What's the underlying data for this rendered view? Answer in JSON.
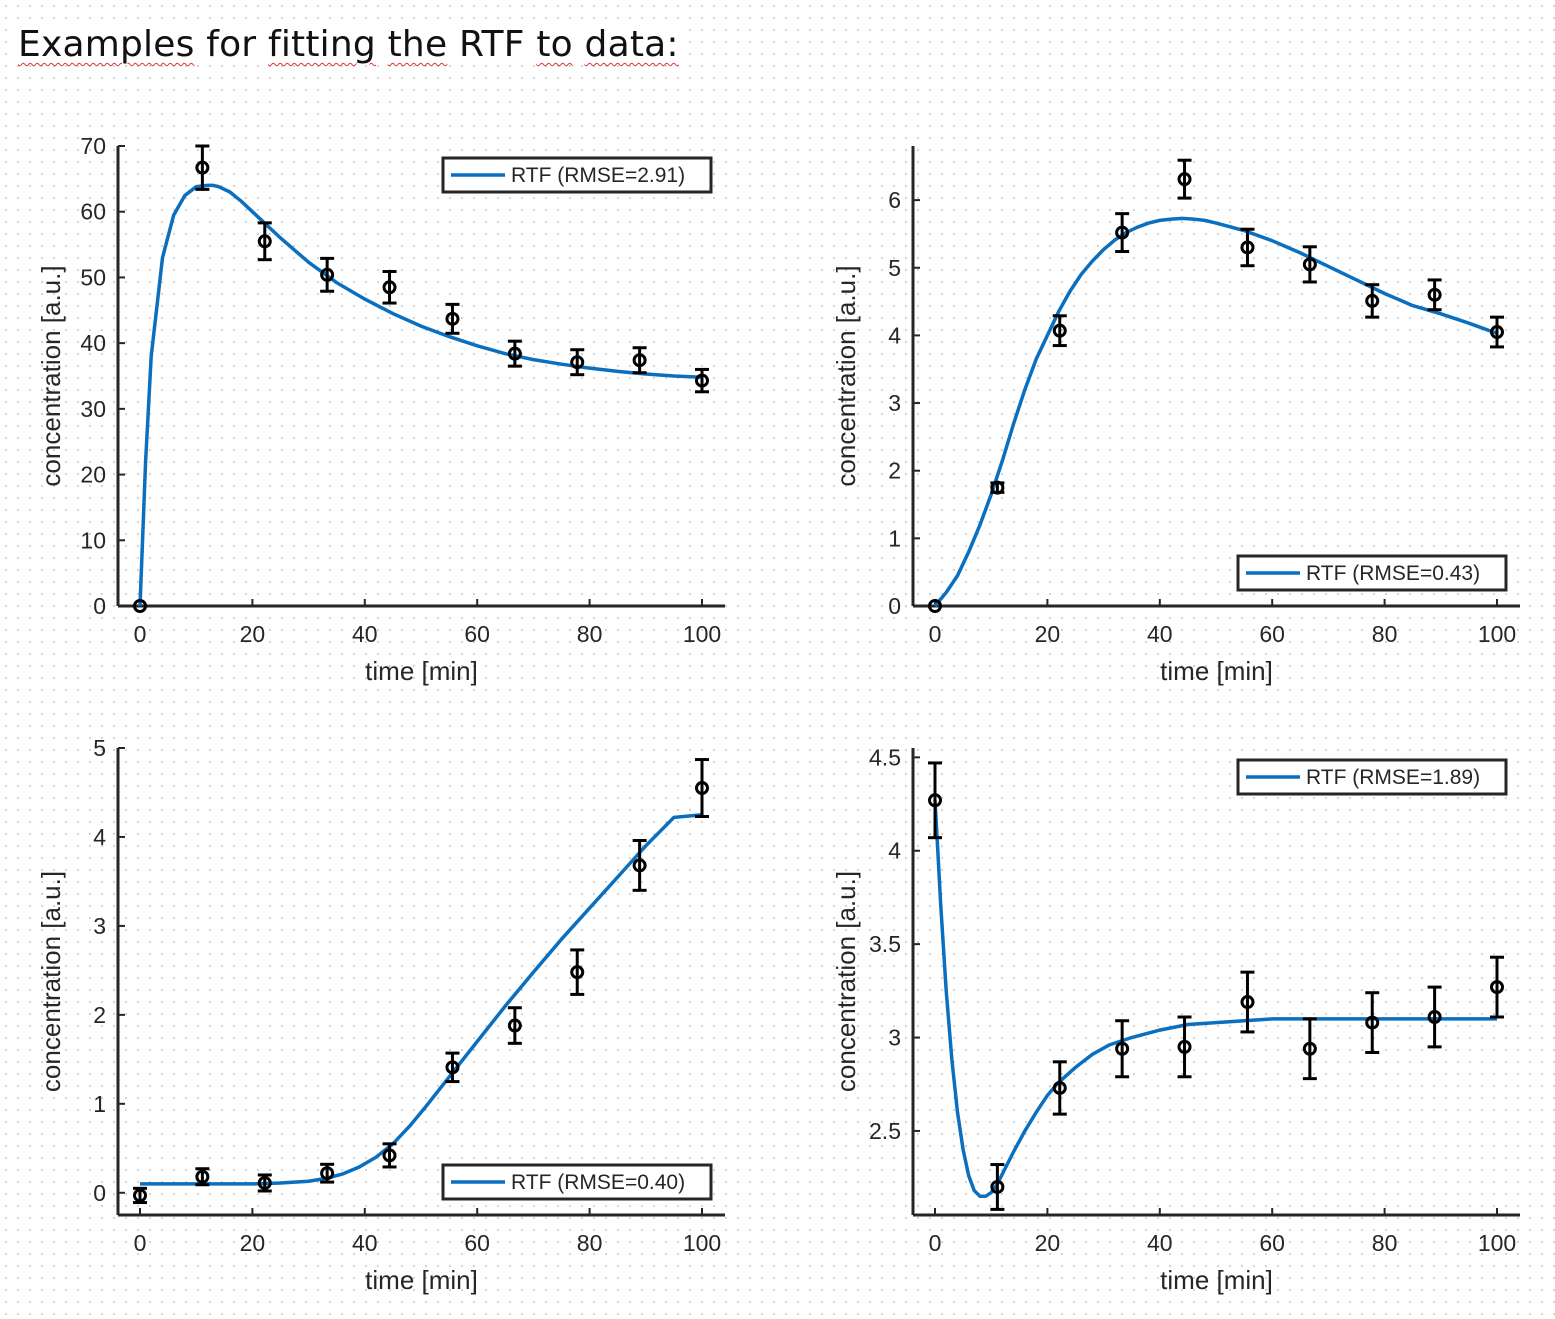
{
  "page": {
    "title_words": [
      "Examples",
      "for",
      "fitting",
      "the",
      "RTF",
      "to",
      "data:"
    ],
    "squiggled_words": [
      0,
      2,
      3,
      5,
      6
    ]
  },
  "chart_data": [
    {
      "type": "line",
      "title": "",
      "xlabel": "time  [min]",
      "ylabel": "concentration  [a.u.]",
      "xlim": [
        0,
        100
      ],
      "ylim": [
        0,
        70
      ],
      "xticks": [
        0,
        20,
        40,
        60,
        80,
        100
      ],
      "yticks": [
        0,
        10,
        20,
        30,
        40,
        50,
        60,
        70
      ],
      "legend": {
        "label": "RTF (RMSE=2.91)",
        "location": "top-right"
      },
      "observed": {
        "x": [
          0,
          11.1,
          22.2,
          33.3,
          44.4,
          55.6,
          66.7,
          77.8,
          88.9,
          100
        ],
        "y": [
          0,
          66.7,
          55.5,
          50.4,
          48.5,
          43.7,
          38.4,
          37.1,
          37.4,
          34.3
        ],
        "err": [
          0,
          3.3,
          2.8,
          2.5,
          2.4,
          2.2,
          1.9,
          1.9,
          1.9,
          1.7
        ]
      },
      "fit": {
        "name": "RTF",
        "x": [
          0,
          1,
          2,
          4,
          6,
          8,
          10,
          12,
          13,
          14,
          16,
          18,
          20,
          25,
          30,
          35,
          40,
          45,
          50,
          55,
          60,
          65,
          70,
          75,
          80,
          85,
          90,
          95,
          100
        ],
        "y": [
          0,
          22,
          38,
          53,
          59.5,
          62.5,
          63.8,
          64,
          64,
          63.8,
          63,
          61.6,
          60,
          56,
          52.3,
          49.2,
          46.7,
          44.5,
          42.6,
          41,
          39.6,
          38.4,
          37.5,
          36.8,
          36.2,
          35.7,
          35.3,
          35,
          34.8
        ]
      }
    },
    {
      "type": "line",
      "title": "",
      "xlabel": "time  [min]",
      "ylabel": "concentration  [a.u.]",
      "xlim": [
        0,
        100
      ],
      "ylim": [
        0,
        6.8
      ],
      "xticks": [
        0,
        20,
        40,
        60,
        80,
        100
      ],
      "yticks": [
        0,
        1,
        2,
        3,
        4,
        5,
        6
      ],
      "legend": {
        "label": "RTF (RMSE=0.43)",
        "location": "bottom-right"
      },
      "observed": {
        "x": [
          0,
          11.1,
          22.2,
          33.3,
          44.4,
          55.6,
          66.7,
          77.8,
          88.9,
          100
        ],
        "y": [
          0,
          1.75,
          4.07,
          5.52,
          6.31,
          5.3,
          5.05,
          4.51,
          4.6,
          4.05
        ],
        "err": [
          0,
          0.07,
          0.22,
          0.28,
          0.28,
          0.27,
          0.26,
          0.24,
          0.22,
          0.22
        ]
      },
      "fit": {
        "name": "RTF",
        "x": [
          0,
          2,
          4,
          6,
          8,
          10,
          12,
          14,
          16,
          18,
          20,
          22,
          24,
          26,
          28,
          30,
          32,
          34,
          36,
          38,
          40,
          42,
          44,
          46,
          48,
          50,
          55,
          60,
          65,
          70,
          75,
          80,
          85,
          90,
          95,
          100
        ],
        "y": [
          0,
          0.2,
          0.45,
          0.8,
          1.2,
          1.65,
          2.15,
          2.7,
          3.2,
          3.65,
          4.0,
          4.35,
          4.65,
          4.9,
          5.1,
          5.27,
          5.41,
          5.52,
          5.6,
          5.66,
          5.7,
          5.72,
          5.73,
          5.72,
          5.7,
          5.66,
          5.55,
          5.4,
          5.22,
          5.02,
          4.82,
          4.62,
          4.44,
          4.32,
          4.18,
          4.03
        ]
      }
    },
    {
      "type": "line",
      "title": "",
      "xlabel": "time  [min]",
      "ylabel": "concentration  [a.u.]",
      "xlim": [
        0,
        100
      ],
      "ylim": [
        -0.25,
        5
      ],
      "xticks": [
        0,
        20,
        40,
        60,
        80,
        100
      ],
      "yticks": [
        0,
        1,
        2,
        3,
        4,
        5
      ],
      "legend": {
        "label": "RTF (RMSE=0.40)",
        "location": "bottom-right"
      },
      "observed": {
        "x": [
          0,
          11.1,
          22.2,
          33.3,
          44.4,
          55.6,
          66.7,
          77.8,
          88.9,
          100
        ],
        "y": [
          -0.03,
          0.18,
          0.11,
          0.22,
          0.42,
          1.41,
          1.88,
          2.48,
          3.68,
          4.55
        ],
        "err": [
          0.08,
          0.09,
          0.09,
          0.1,
          0.13,
          0.16,
          0.2,
          0.25,
          0.28,
          0.32
        ]
      },
      "fit": {
        "name": "RTF",
        "x": [
          0,
          10,
          20,
          25,
          30,
          33,
          36,
          39,
          42,
          45,
          48,
          51,
          55,
          60,
          65,
          70,
          75,
          80,
          85,
          90,
          95,
          100
        ],
        "y": [
          0.1,
          0.1,
          0.1,
          0.11,
          0.13,
          0.16,
          0.21,
          0.29,
          0.4,
          0.55,
          0.75,
          0.98,
          1.3,
          1.7,
          2.1,
          2.48,
          2.85,
          3.2,
          3.55,
          3.9,
          4.22,
          4.25
        ]
      }
    },
    {
      "type": "line",
      "title": "",
      "xlabel": "time  [min]",
      "ylabel": "concentration  [a.u.]",
      "xlim": [
        0,
        100
      ],
      "ylim": [
        2.05,
        4.55
      ],
      "xticks": [
        0,
        20,
        40,
        60,
        80,
        100
      ],
      "yticks": [
        2.5,
        3,
        3.5,
        4,
        4.5
      ],
      "legend": {
        "label": "RTF (RMSE=1.89)",
        "location": "top-right"
      },
      "observed": {
        "x": [
          0,
          11.1,
          22.2,
          33.3,
          44.4,
          55.6,
          66.7,
          77.8,
          88.9,
          100
        ],
        "y": [
          4.27,
          2.2,
          2.73,
          2.94,
          2.95,
          3.19,
          2.94,
          3.08,
          3.11,
          3.27
        ],
        "err": [
          0.2,
          0.12,
          0.14,
          0.15,
          0.16,
          0.16,
          0.16,
          0.16,
          0.16,
          0.16
        ]
      },
      "fit": {
        "name": "RTF",
        "x": [
          0,
          0.5,
          1,
          2,
          3,
          4,
          5,
          6,
          7,
          8,
          9,
          10,
          11,
          12,
          14,
          16,
          18,
          20,
          22,
          25,
          28,
          31,
          35,
          40,
          45,
          50,
          55,
          60,
          70,
          80,
          90,
          100
        ],
        "y": [
          4.27,
          4.0,
          3.72,
          3.25,
          2.88,
          2.6,
          2.4,
          2.26,
          2.18,
          2.15,
          2.15,
          2.17,
          2.21,
          2.27,
          2.39,
          2.5,
          2.6,
          2.69,
          2.76,
          2.84,
          2.91,
          2.96,
          3.0,
          3.04,
          3.07,
          3.08,
          3.09,
          3.1,
          3.1,
          3.1,
          3.1,
          3.1
        ]
      }
    }
  ]
}
